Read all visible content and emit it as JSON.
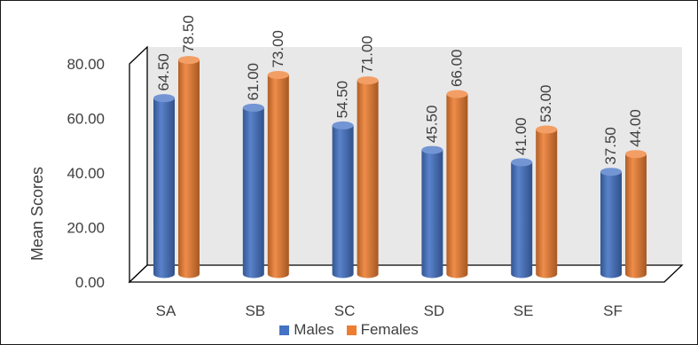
{
  "chart_data": {
    "type": "bar",
    "categories": [
      "SA",
      "SB",
      "SC",
      "SD",
      "SE",
      "SF"
    ],
    "series": [
      {
        "name": "Males",
        "values": [
          64.5,
          61.0,
          54.5,
          45.5,
          41.0,
          37.5
        ],
        "color": "#4472C4"
      },
      {
        "name": "Females",
        "values": [
          78.5,
          73.0,
          71.0,
          66.0,
          53.0,
          44.0
        ],
        "color": "#ED7D31"
      }
    ],
    "title": "",
    "xlabel": "",
    "ylabel": "Mean Scores",
    "ylim": [
      0,
      80
    ],
    "yticks": [
      "0.00",
      "20.00",
      "40.00",
      "60.00",
      "80.00"
    ],
    "data_labels": [
      [
        "64.50",
        "61.00",
        "54.50",
        "45.50",
        "41.00",
        "37.50"
      ],
      [
        "78.50",
        "73.00",
        "71.00",
        "66.00",
        "53.00",
        "44.00"
      ]
    ],
    "style": "3d-clustered-cylinder",
    "grid": false,
    "legend": "bottom",
    "wall_color": "#E8E8E8"
  }
}
